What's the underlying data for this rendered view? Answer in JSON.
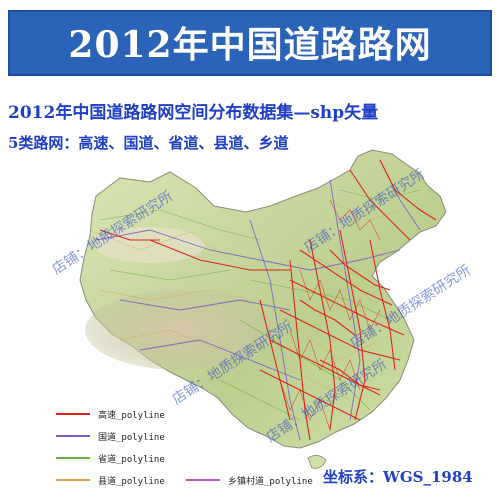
{
  "header": {
    "title": "2012年中国道路路网"
  },
  "subtitle": "2012年中国道路路网空间分布数据集—shp矢量",
  "categories_line": "5类路网：高速、国道、省道、县道、乡道",
  "legend": [
    {
      "label": "高速_polyline",
      "color": "#e0241b"
    },
    {
      "label": "国道_polyline",
      "color": "#7b5cc9"
    },
    {
      "label": "省道_polyline",
      "color": "#6db33f"
    },
    {
      "label": "县道_polyline",
      "color": "#e1a04a"
    },
    {
      "label": "乡镇村道_polyline",
      "color": "#b05fc8"
    }
  ],
  "coordinate_system": "坐标系：WGS_1984",
  "watermarks": [
    "店铺：地质探索研究所",
    "店铺：地质探索研究所",
    "店铺：地质探索研究所",
    "店铺：地质探索研究所",
    "店铺：地质探索研究所"
  ]
}
